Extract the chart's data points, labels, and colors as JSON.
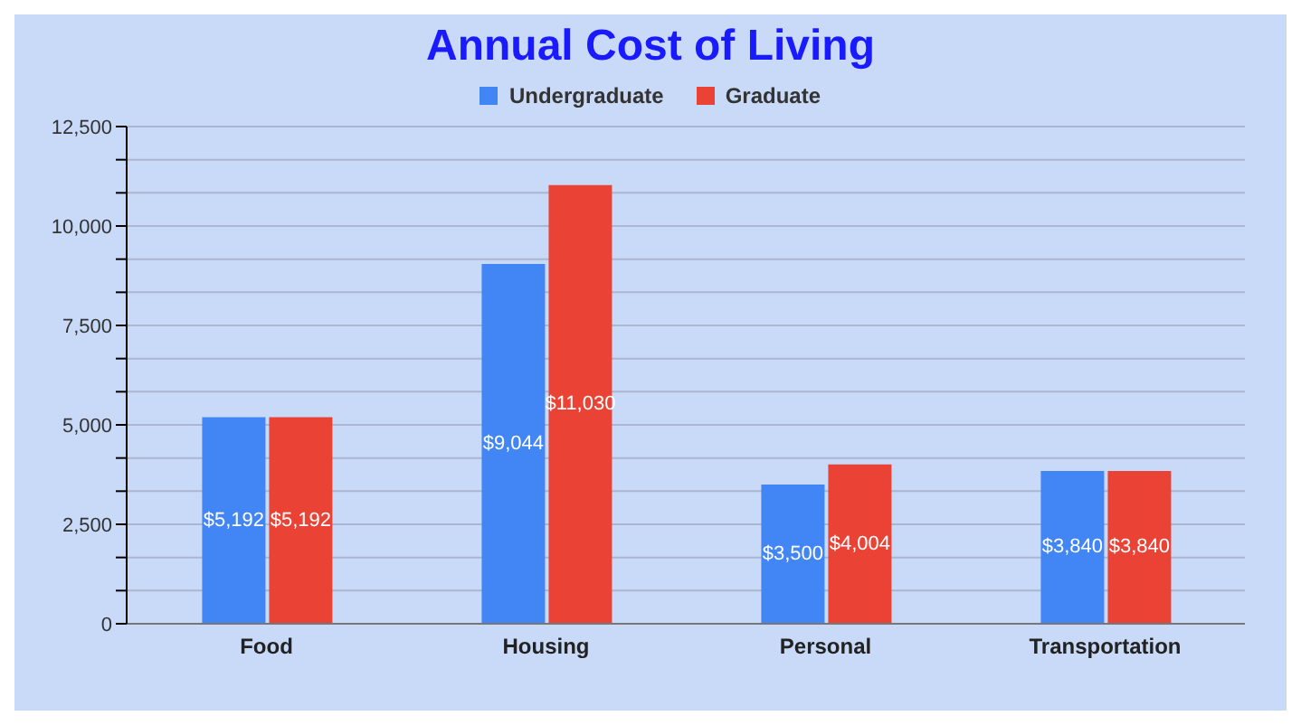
{
  "chart_data": {
    "type": "bar",
    "title": "Annual Cost of Living",
    "categories": [
      "Food",
      "Housing",
      "Personal",
      "Transportation"
    ],
    "series": [
      {
        "name": "Undergraduate",
        "color": "#4285f4",
        "values": [
          5192,
          9044,
          3500,
          3840
        ],
        "value_labels": [
          "$5,192",
          "$9,044",
          "$3,500",
          "$3,840"
        ]
      },
      {
        "name": "Graduate",
        "color": "#ea4335",
        "values": [
          5192,
          11030,
          4004,
          3840
        ],
        "value_labels": [
          "$5,192",
          "$11,030",
          "$4,004",
          "$3,840"
        ]
      }
    ],
    "ylim": [
      0,
      12500
    ],
    "yticks": [
      0,
      {
        "value": 833.33,
        "label": null
      },
      {
        "value": 1666.67,
        "label": null
      },
      {
        "value": 2500,
        "label": "2,500"
      },
      {
        "value": 3333.33,
        "label": null
      },
      {
        "value": 4166.67,
        "label": null
      },
      {
        "value": 5000,
        "label": "5,000"
      },
      {
        "value": 5833.33,
        "label": null
      },
      {
        "value": 6666.67,
        "label": null
      },
      {
        "value": 7500,
        "label": "7,500"
      },
      {
        "value": 8333.33,
        "label": null
      },
      {
        "value": 9166.67,
        "label": null
      },
      {
        "value": 10000,
        "label": "10,000"
      },
      {
        "value": 10833.33,
        "label": null
      },
      {
        "value": 11666.67,
        "label": null
      },
      {
        "value": 12500,
        "label": "12,500"
      }
    ],
    "grid": "y",
    "legend": "top"
  }
}
